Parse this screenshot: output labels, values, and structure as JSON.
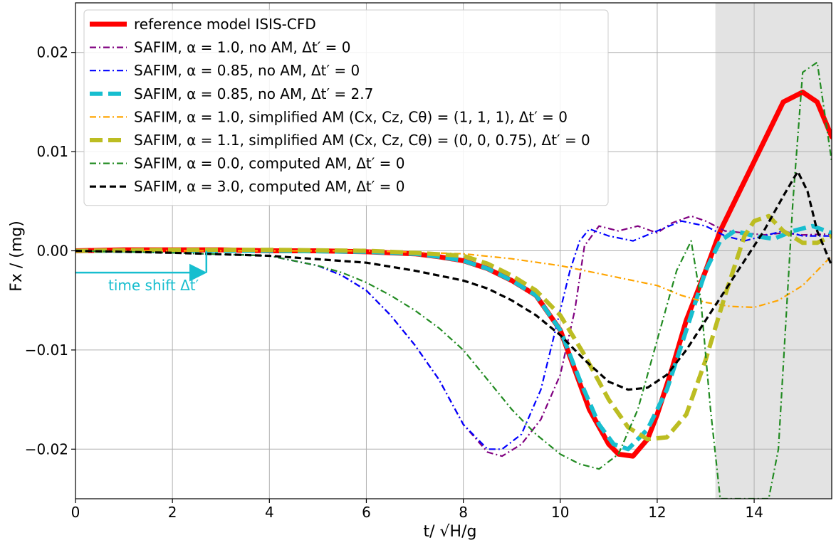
{
  "chart_data": {
    "type": "line",
    "xlabel": "t/ √H/g",
    "ylabel": "Fx / (mg)",
    "xlim": [
      0,
      15.6
    ],
    "ylim": [
      -0.025,
      0.025
    ],
    "x_ticks": [
      0,
      2,
      4,
      6,
      8,
      10,
      12,
      14
    ],
    "y_ticks": [
      -0.02,
      -0.01,
      0.0,
      0.01,
      0.02
    ],
    "x_tick_labels": [
      "0",
      "2",
      "4",
      "6",
      "8",
      "10",
      "12",
      "14"
    ],
    "y_tick_labels": [
      "−0.02",
      "−0.01",
      "0.00",
      "0.01",
      "0.02"
    ],
    "grid": true,
    "legend_position": "upper-left",
    "shaded_region": {
      "x_start": 13.2,
      "x_end": 15.6,
      "color": "#e3e3e3"
    },
    "annotation": {
      "text": "time shift Δt′",
      "color": "#17becf",
      "arrow_from": [
        0,
        -0.0022
      ],
      "arrow_to": [
        2.7,
        -0.0022
      ],
      "bracket_top": 0.0
    },
    "series": [
      {
        "name": "reference model ISIS-CFD",
        "color": "#ff0000",
        "style": "solid",
        "width": 7,
        "x": [
          0,
          1,
          2,
          3,
          4,
          5,
          6,
          7,
          7.5,
          8,
          8.5,
          9,
          9.5,
          10,
          10.3,
          10.6,
          11,
          11.2,
          11.5,
          11.8,
          12,
          12.3,
          12.6,
          13,
          13.3,
          13.6,
          14,
          14.3,
          14.6,
          15,
          15.3,
          15.6
        ],
        "y": [
          0,
          0.0001,
          0.0001,
          0.0001,
          0,
          0,
          -0.0001,
          -0.0003,
          -0.0006,
          -0.001,
          -0.0018,
          -0.003,
          -0.0045,
          -0.008,
          -0.012,
          -0.016,
          -0.0195,
          -0.0205,
          -0.0207,
          -0.019,
          -0.0165,
          -0.012,
          -0.007,
          -0.002,
          0.002,
          0.005,
          0.009,
          0.012,
          0.015,
          0.016,
          0.015,
          0.0115
        ]
      },
      {
        "name": "SAFIM, α = 1.0, no AM, Δt′ = 0",
        "color": "#800080",
        "style": "dashdot",
        "width": 2.2,
        "x": [
          0,
          2,
          4,
          5,
          5.5,
          6,
          6.5,
          7,
          7.5,
          8,
          8.5,
          8.8,
          9.2,
          9.6,
          10,
          10.3,
          10.5,
          10.8,
          11.2,
          11.6,
          12,
          12.3,
          12.7,
          13,
          13.4,
          13.8,
          14.2,
          14.6,
          15,
          15.6
        ],
        "y": [
          0,
          -0.0002,
          -0.0005,
          -0.0015,
          -0.0025,
          -0.004,
          -0.0065,
          -0.0095,
          -0.013,
          -0.0175,
          -0.0203,
          -0.0207,
          -0.0195,
          -0.017,
          -0.0125,
          -0.006,
          0.0005,
          0.0025,
          0.002,
          0.0025,
          0.0018,
          0.0028,
          0.0035,
          0.003,
          0.002,
          0.0018,
          0.0016,
          0.0018,
          0.0016,
          0.0017
        ]
      },
      {
        "name": "SAFIM, α = 0.85, no AM, Δt′ = 0",
        "color": "#0000ff",
        "style": "dashdot",
        "width": 2.2,
        "x": [
          0,
          2,
          4,
          5,
          5.5,
          6,
          6.5,
          7,
          7.5,
          8,
          8.5,
          8.8,
          9.2,
          9.6,
          9.9,
          10.2,
          10.4,
          10.6,
          11,
          11.5,
          12,
          12.5,
          13,
          13.4,
          13.8,
          14.2,
          14.6,
          15,
          15.6
        ],
        "y": [
          0,
          -0.0002,
          -0.0005,
          -0.0015,
          -0.0025,
          -0.004,
          -0.0065,
          -0.0095,
          -0.013,
          -0.0175,
          -0.02,
          -0.02,
          -0.0185,
          -0.014,
          -0.008,
          -0.002,
          0.001,
          0.0022,
          0.0015,
          0.001,
          0.002,
          0.003,
          0.0025,
          0.0015,
          0.001,
          0.0015,
          0.002,
          0.0015,
          0.0015
        ]
      },
      {
        "name": "SAFIM, α = 0.85, no AM, Δt′ = 2.7",
        "color": "#17becf",
        "style": "dashed",
        "width": 6,
        "x": [
          0,
          2,
          2.7,
          4,
          6,
          7,
          7.5,
          8,
          8.5,
          9,
          9.5,
          10,
          10.4,
          10.8,
          11.1,
          11.4,
          11.8,
          12.2,
          12.6,
          13,
          13.3,
          13.6,
          14,
          14.4,
          14.8,
          15.2,
          15.6
        ],
        "y": [
          0,
          0,
          0,
          0,
          -0.0001,
          -0.0003,
          -0.0006,
          -0.001,
          -0.0018,
          -0.003,
          -0.0045,
          -0.008,
          -0.013,
          -0.0175,
          -0.0195,
          -0.02,
          -0.018,
          -0.014,
          -0.008,
          -0.002,
          0.001,
          0.002,
          0.0015,
          0.0012,
          0.002,
          0.0025,
          0.0018
        ]
      },
      {
        "name": "SAFIM, α = 1.0, simplified AM (Cx, Cz, Cθ) = (1, 1, 1), Δt′ = 0",
        "color": "#ffa500",
        "style": "dashdot",
        "width": 2.2,
        "x": [
          0,
          2,
          4,
          6,
          8,
          9,
          10,
          11,
          12,
          12.5,
          13,
          13.5,
          14,
          14.5,
          15,
          15.6
        ],
        "y": [
          0,
          0,
          0,
          0,
          -0.0003,
          -0.0008,
          -0.0015,
          -0.0025,
          -0.0035,
          -0.0045,
          -0.0052,
          -0.0056,
          -0.0057,
          -0.005,
          -0.0035,
          -0.0005
        ]
      },
      {
        "name": "SAFIM, α = 1.1, simplified AM (Cx, Cz, Cθ) = (0, 0, 0.75), Δt′ = 0",
        "color": "#bcbd22",
        "style": "dashed",
        "width": 6,
        "x": [
          0,
          2,
          4,
          6,
          7,
          8,
          8.5,
          9,
          9.5,
          10,
          10.5,
          11,
          11.4,
          11.8,
          12.2,
          12.6,
          13,
          13.4,
          13.8,
          14,
          14.3,
          14.6,
          15,
          15.3,
          15.6
        ],
        "y": [
          0,
          0.0001,
          0.0001,
          0,
          -0.0002,
          -0.0005,
          -0.0013,
          -0.0025,
          -0.004,
          -0.0065,
          -0.0105,
          -0.015,
          -0.0178,
          -0.019,
          -0.0188,
          -0.0165,
          -0.011,
          -0.0045,
          0.0015,
          0.003,
          0.0035,
          0.002,
          0.0008,
          0.0008,
          0.0015
        ]
      },
      {
        "name": "SAFIM, α = 0.0, computed AM, Δt′ = 0",
        "color": "#228b22",
        "style": "dashdot",
        "width": 2.2,
        "x": [
          0,
          2,
          4,
          5,
          5.5,
          6,
          6.5,
          7,
          7.5,
          8,
          8.5,
          9,
          9.5,
          10,
          10.4,
          10.8,
          11.2,
          11.6,
          12,
          12.4,
          12.7,
          12.9,
          13.1,
          13.3,
          13.6,
          14,
          14.3,
          14.5,
          14.8,
          15,
          15.3,
          15.6
        ],
        "y": [
          0,
          -0.0002,
          -0.0005,
          -0.0015,
          -0.0022,
          -0.0032,
          -0.0045,
          -0.006,
          -0.0078,
          -0.01,
          -0.013,
          -0.016,
          -0.0185,
          -0.0205,
          -0.0215,
          -0.022,
          -0.0205,
          -0.016,
          -0.009,
          -0.002,
          0.001,
          -0.005,
          -0.016,
          -0.025,
          -0.025,
          -0.025,
          -0.025,
          -0.02,
          0.005,
          0.018,
          0.019,
          0.009
        ]
      },
      {
        "name": "SAFIM, α = 3.0, computed AM, Δt′ = 0",
        "color": "#000000",
        "style": "dashed",
        "width": 3.2,
        "x": [
          0,
          2,
          4,
          6,
          7,
          8,
          8.5,
          9,
          9.5,
          10,
          10.5,
          11,
          11.4,
          11.8,
          12.2,
          12.6,
          13,
          13.4,
          13.8,
          14.2,
          14.6,
          14.9,
          15.1,
          15.3,
          15.6
        ],
        "y": [
          0,
          -0.0002,
          -0.0005,
          -0.0012,
          -0.002,
          -0.003,
          -0.0038,
          -0.005,
          -0.0065,
          -0.0085,
          -0.011,
          -0.0132,
          -0.014,
          -0.0138,
          -0.0125,
          -0.01,
          -0.007,
          -0.004,
          -0.001,
          0.002,
          0.0055,
          0.008,
          0.006,
          0.002,
          -0.0015
        ]
      }
    ]
  }
}
